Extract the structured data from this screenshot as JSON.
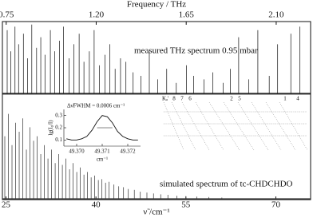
{
  "chart_data": {
    "type": "spectrum",
    "x2label": "Frequency / THz",
    "x2lim": [
      0.731,
      2.272
    ],
    "x2ticks": [
      0.75,
      {
        "value": 1.2,
        "label": "1.20"
      },
      1.65,
      {
        "value": 2.1,
        "label": "2.10"
      }
    ],
    "xlabel": "ν̃ /cm⁻¹",
    "xlim": [
      24.4,
      75.8
    ],
    "xticks": [
      25,
      40,
      55,
      70
    ],
    "series": [
      {
        "name": "measured THz spectrum 0.95 mbar",
        "color": "#111111",
        "x": [
          25.2,
          25.8,
          26.5,
          27.1,
          27.9,
          28.6,
          29.3,
          30.1,
          30.8,
          31.5,
          32.4,
          33.1,
          33.9,
          34.6,
          35.5,
          36.3,
          37.2,
          38.0,
          38.9,
          39.7,
          40.6,
          41.5,
          42.3,
          43.2,
          44.1,
          45.0,
          46.2,
          47.5,
          48.9,
          50.3,
          51.8,
          53.4,
          55.1,
          56.3,
          58.0,
          59.5,
          61.2,
          62.4,
          63.8,
          65.5,
          67.0,
          68.9,
          70.3,
          72.5,
          74.0
        ],
        "values": [
          0.9,
          0.6,
          0.95,
          0.7,
          0.85,
          0.5,
          0.98,
          0.65,
          0.8,
          0.55,
          0.9,
          0.6,
          0.75,
          0.95,
          0.5,
          0.7,
          0.85,
          0.45,
          0.6,
          0.9,
          0.4,
          0.55,
          0.7,
          0.35,
          0.5,
          0.45,
          0.3,
          0.25,
          0.6,
          0.2,
          0.35,
          0.15,
          0.4,
          0.25,
          0.2,
          0.3,
          0.15,
          0.35,
          0.8,
          0.2,
          0.9,
          0.25,
          0.7,
          0.85,
          0.95
        ]
      },
      {
        "name": "simulated spectrum of tc-CHDCHDO",
        "color": "#333333",
        "x": [
          24.8,
          25.4,
          26.0,
          26.6,
          27.2,
          27.8,
          28.4,
          29.0,
          29.6,
          30.2,
          30.8,
          31.4,
          32.0,
          32.6,
          33.2,
          33.8,
          34.4,
          35.0,
          35.6,
          36.2,
          36.8,
          37.4,
          38.0,
          38.6,
          39.2,
          39.8,
          40.4,
          41.0,
          41.6,
          42.2,
          43.0,
          43.8,
          44.6,
          45.4,
          46.4,
          47.4,
          48.5,
          49.6,
          50.8,
          52.0,
          53.5,
          55.0,
          56.8,
          58.8,
          61.0
        ],
        "values": [
          0.7,
          0.95,
          0.6,
          0.85,
          0.75,
          0.9,
          0.55,
          0.8,
          0.65,
          0.7,
          0.5,
          0.6,
          0.45,
          0.55,
          0.4,
          0.5,
          0.38,
          0.45,
          0.33,
          0.4,
          0.3,
          0.35,
          0.27,
          0.3,
          0.24,
          0.26,
          0.21,
          0.22,
          0.18,
          0.19,
          0.16,
          0.14,
          0.13,
          0.11,
          0.1,
          0.08,
          0.07,
          0.06,
          0.05,
          0.045,
          0.035,
          0.03,
          0.025,
          0.02,
          0.015
        ]
      }
    ],
    "inset": {
      "type": "line",
      "annotation": "Δν̃FWHM = 0.0006 cm⁻¹",
      "ylabel": "lg(I₀/I)",
      "xlabel": "cm⁻¹",
      "xlim": [
        49.3695,
        49.3725
      ],
      "xticks": [
        {
          "value": 49.37,
          "label": "49.370"
        },
        {
          "value": 49.371,
          "label": "49.371"
        },
        {
          "value": 49.372,
          "label": "49.372"
        }
      ],
      "ylim": [
        0.05,
        0.35
      ],
      "yticks": [
        0.1,
        0.2,
        0.3
      ],
      "x": [
        49.3696,
        49.3698,
        49.37,
        49.3702,
        49.3704,
        49.3706,
        49.3708,
        49.371,
        49.3712,
        49.3714,
        49.3716,
        49.3718,
        49.372,
        49.3722,
        49.3724
      ],
      "values": [
        0.11,
        0.1,
        0.1,
        0.11,
        0.13,
        0.18,
        0.25,
        0.3,
        0.29,
        0.24,
        0.17,
        0.13,
        0.11,
        0.1,
        0.1
      ]
    },
    "assignment": {
      "label": "Kₐ'",
      "numbers": [
        "8",
        "7",
        "6",
        "2",
        "5",
        "1",
        "4"
      ]
    }
  }
}
